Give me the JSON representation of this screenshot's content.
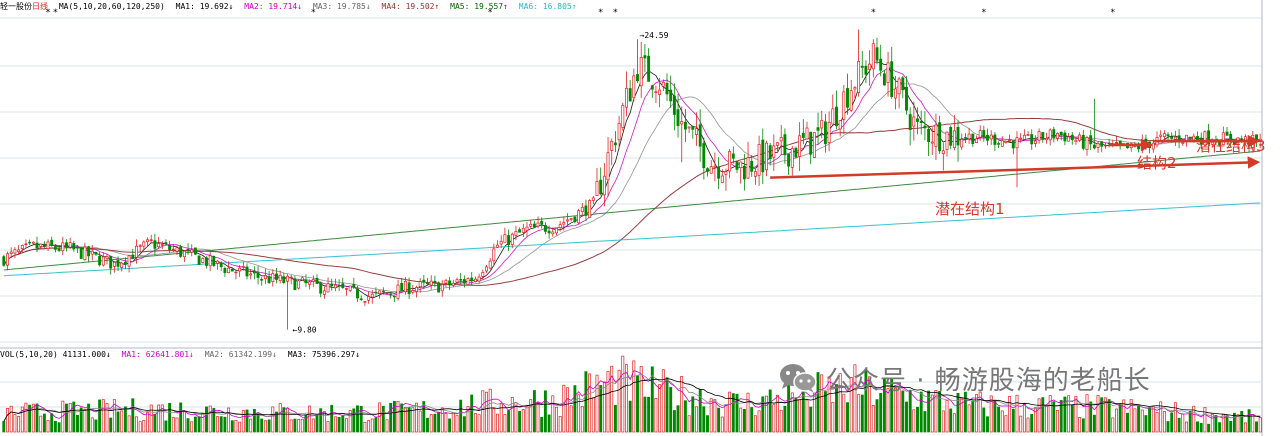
{
  "header": {
    "stock_name": "轻一股份",
    "period": "日线",
    "ma_legend": [
      {
        "text": "MA(5,10,20,60,120,250)",
        "color": "#000000"
      },
      {
        "text": "MA1: 19.692↓",
        "color": "#000000"
      },
      {
        "text": "MA2: 19.714↓",
        "color": "#cc00cc"
      },
      {
        "text": "MA3: 19.785↓",
        "color": "#666666"
      },
      {
        "text": "MA4: 19.502↑",
        "color": "#a03030"
      },
      {
        "text": "MA5: 19.557↑",
        "color": "#006600"
      },
      {
        "text": "MA6: 16.805↑",
        "color": "#22bbcc"
      }
    ],
    "vol_legend": [
      {
        "text": "VOL(5,10,20) 41131.000↓",
        "color": "#000000"
      },
      {
        "text": "MA1: 62641.801↓",
        "color": "#cc00cc"
      },
      {
        "text": "MA2: 61342.199↓",
        "color": "#666666"
      },
      {
        "text": "MA3: 75396.297↓",
        "color": "#000000"
      }
    ]
  },
  "watermark": {
    "text": "公众号 · 畅游股海的老船长",
    "icon": "wechat-icon"
  },
  "colors": {
    "up": "#e02020",
    "down": "#008800",
    "annotation": "#d23a2a"
  },
  "chart_data": {
    "type": "candlestick",
    "price_range": [
      9.0,
      26.0
    ],
    "gridlines": true,
    "labels": {
      "low": "9.80",
      "high": "24.59"
    },
    "annotations": [
      "潜在结构1",
      "结构2",
      "潜在结构3"
    ],
    "price_anchors": [
      [
        0,
        13.5
      ],
      [
        8,
        14.1
      ],
      [
        18,
        14.0
      ],
      [
        30,
        13.2
      ],
      [
        40,
        14.3
      ],
      [
        50,
        13.7
      ],
      [
        60,
        13.0
      ],
      [
        70,
        12.5
      ],
      [
        80,
        12.2
      ],
      [
        90,
        11.9
      ],
      [
        100,
        11.5
      ],
      [
        110,
        12.0
      ],
      [
        120,
        12.1
      ],
      [
        128,
        12.5
      ],
      [
        134,
        14.2
      ],
      [
        142,
        15.0
      ],
      [
        150,
        15.2
      ],
      [
        160,
        16.3
      ],
      [
        166,
        20.0
      ],
      [
        172,
        23.5
      ],
      [
        178,
        22.7
      ],
      [
        184,
        20.5
      ],
      [
        192,
        18.5
      ],
      [
        200,
        18.3
      ],
      [
        210,
        18.9
      ],
      [
        222,
        19.9
      ],
      [
        230,
        22.5
      ],
      [
        236,
        24.0
      ],
      [
        242,
        22.4
      ],
      [
        248,
        20.2
      ],
      [
        256,
        19.9
      ],
      [
        266,
        19.8
      ],
      [
        276,
        19.5
      ],
      [
        286,
        20.0
      ],
      [
        296,
        19.3
      ],
      [
        306,
        19.2
      ],
      [
        314,
        19.7
      ],
      [
        324,
        19.8
      ],
      [
        334,
        19.7
      ],
      [
        341,
        19.5
      ]
    ],
    "volume_range": [
      0,
      210000
    ],
    "volume_anchors": [
      [
        0,
        55000
      ],
      [
        40,
        65000
      ],
      [
        80,
        55000
      ],
      [
        110,
        60000
      ],
      [
        130,
        80000
      ],
      [
        150,
        95000
      ],
      [
        166,
        150000
      ],
      [
        178,
        120000
      ],
      [
        200,
        80000
      ],
      [
        230,
        130000
      ],
      [
        260,
        80000
      ],
      [
        300,
        70000
      ],
      [
        341,
        40000
      ]
    ]
  }
}
